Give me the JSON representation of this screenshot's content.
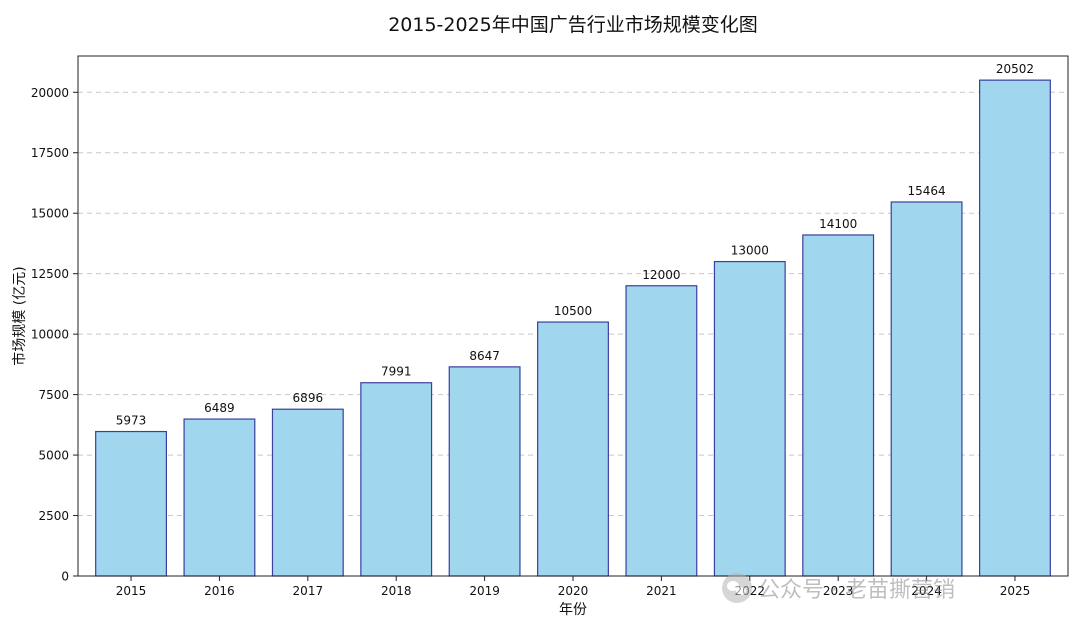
{
  "chart_data": {
    "type": "bar",
    "title": "2015-2025年中国广告行业市场规模变化图",
    "xlabel": "年份",
    "ylabel": "市场规模 (亿元)",
    "categories": [
      "2015",
      "2016",
      "2017",
      "2018",
      "2019",
      "2020",
      "2021",
      "2022",
      "2023",
      "2024",
      "2025"
    ],
    "values": [
      5973,
      6489,
      6896,
      7991,
      8647,
      10500,
      12000,
      13000,
      14100,
      15464,
      20502
    ],
    "ylim": [
      0,
      21500
    ],
    "yticks": [
      0,
      2500,
      5000,
      7500,
      10000,
      12500,
      15000,
      17500,
      20000
    ],
    "grid": "y-dashed",
    "colors": {
      "bar_fill": "#a0d6ee",
      "bar_edge": "#3a3fa0",
      "grid": "#c8c8c8"
    }
  },
  "watermark": {
    "text": "公众号 · 老苗撕营销",
    "icon": "wechat-icon"
  }
}
